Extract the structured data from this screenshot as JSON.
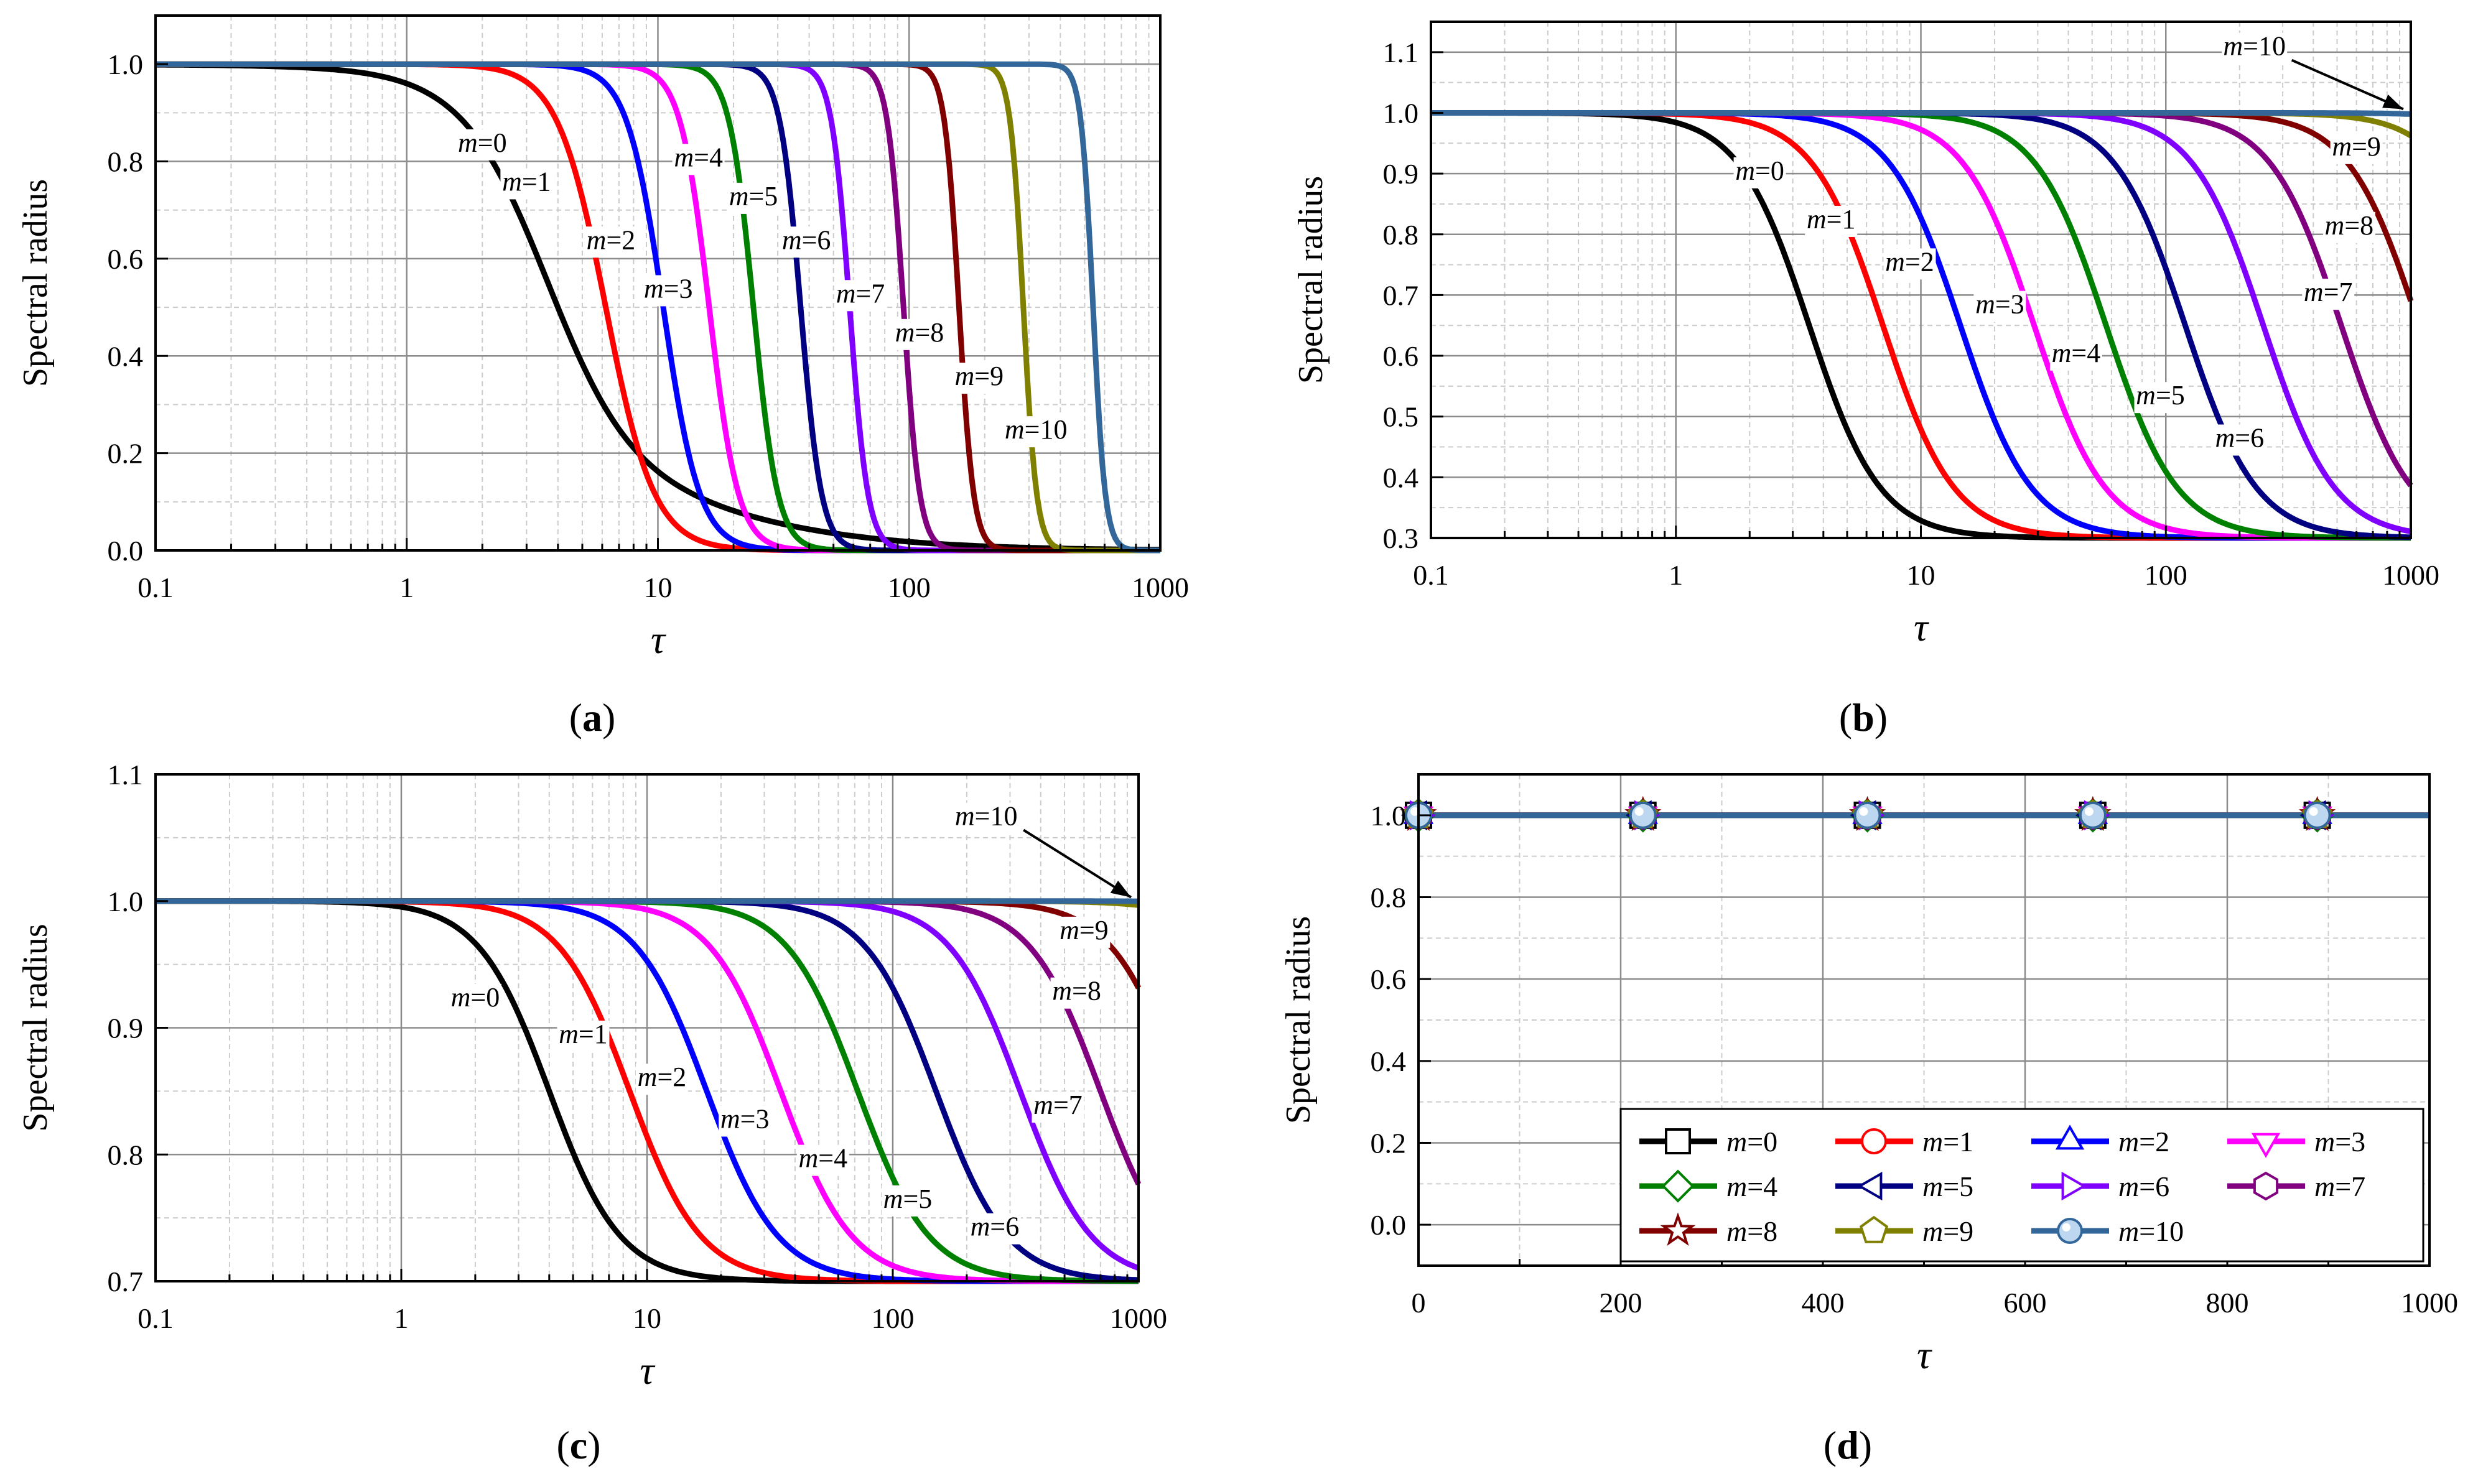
{
  "figure": {
    "panels": [
      "a",
      "b",
      "c",
      "d"
    ]
  },
  "colors": {
    "m0": "#000000",
    "m1": "#ff0000",
    "m2": "#0000ff",
    "m3": "#ff00ff",
    "m4": "#008000",
    "m5": "#000080",
    "m6": "#8000ff",
    "m7": "#800080",
    "m8": "#800000",
    "m9": "#808000",
    "m10": "#336699"
  },
  "legend": {
    "entries": [
      {
        "m": "m",
        "eq": "=0",
        "marker": "square"
      },
      {
        "m": "m",
        "eq": "=1",
        "marker": "circle"
      },
      {
        "m": "m",
        "eq": "=2",
        "marker": "triangle-up"
      },
      {
        "m": "m",
        "eq": "=3",
        "marker": "triangle-down"
      },
      {
        "m": "m",
        "eq": "=4",
        "marker": "diamond"
      },
      {
        "m": "m",
        "eq": "=5",
        "marker": "triangle-left"
      },
      {
        "m": "m",
        "eq": "=6",
        "marker": "triangle-right"
      },
      {
        "m": "m",
        "eq": "=7",
        "marker": "hexagon"
      },
      {
        "m": "m",
        "eq": "=8",
        "marker": "star"
      },
      {
        "m": "m",
        "eq": "=9",
        "marker": "pentagon"
      },
      {
        "m": "m",
        "eq": "=10",
        "marker": "sphere"
      }
    ]
  },
  "chart_data": [
    {
      "id": "a",
      "panel_letter": "a",
      "type": "line",
      "xscale": "log",
      "xlabel": "τ",
      "ylabel": "Spectral radius",
      "xlim": [
        0.1,
        1000
      ],
      "ylim": [
        0.0,
        1.1
      ],
      "xticks": [
        "0.1",
        "1",
        "10",
        "100",
        "1000"
      ],
      "yticks": [
        "0.0",
        "0.2",
        "0.4",
        "0.6",
        "0.8",
        "1.0"
      ],
      "floor": 0.0,
      "series": [
        {
          "name": "m=0",
          "tau_half": 3.6,
          "steep": 2.2,
          "tail": true
        },
        {
          "name": "m=1",
          "tau_half": 6.2,
          "steep": 4.5
        },
        {
          "name": "m=2",
          "tau_half": 10.5,
          "steep": 6.0
        },
        {
          "name": "m=3",
          "tau_half": 16.0,
          "steep": 7.5
        },
        {
          "name": "m=4",
          "tau_half": 24.0,
          "steep": 9.0
        },
        {
          "name": "m=5",
          "tau_half": 37.0,
          "steep": 10.5
        },
        {
          "name": "m=6",
          "tau_half": 58.0,
          "steep": 12.0
        },
        {
          "name": "m=7",
          "tau_half": 95.0,
          "steep": 13.5
        },
        {
          "name": "m=8",
          "tau_half": 158.0,
          "steep": 15.0
        },
        {
          "name": "m=9",
          "tau_half": 285.0,
          "steep": 16.5
        },
        {
          "name": "m=10",
          "tau_half": 540.0,
          "steep": 18.0
        }
      ],
      "labels": [
        {
          "m": "m",
          "eq": "=0",
          "tau": 2.0,
          "y": 0.82
        },
        {
          "m": "m",
          "eq": "=1",
          "tau": 3.0,
          "y": 0.74
        },
        {
          "m": "m",
          "eq": "=2",
          "tau": 6.5,
          "y": 0.62
        },
        {
          "m": "m",
          "eq": "=3",
          "tau": 11.0,
          "y": 0.52
        },
        {
          "m": "m",
          "eq": "=4",
          "tau": 14.5,
          "y": 0.79
        },
        {
          "m": "m",
          "eq": "=5",
          "tau": 24.0,
          "y": 0.71
        },
        {
          "m": "m",
          "eq": "=6",
          "tau": 39.0,
          "y": 0.62
        },
        {
          "m": "m",
          "eq": "=7",
          "tau": 64.0,
          "y": 0.51
        },
        {
          "m": "m",
          "eq": "=8",
          "tau": 110.0,
          "y": 0.43
        },
        {
          "m": "m",
          "eq": "=9",
          "tau": 190.0,
          "y": 0.34
        },
        {
          "m": "m",
          "eq": "=10",
          "tau": 320.0,
          "y": 0.23
        }
      ]
    },
    {
      "id": "b",
      "panel_letter": "b",
      "type": "line",
      "xscale": "log",
      "xlabel": "τ",
      "ylabel": "Spectral radius",
      "xlim": [
        0.1,
        1000
      ],
      "ylim": [
        0.3,
        1.15
      ],
      "xticks": [
        "0.1",
        "1",
        "10",
        "100",
        "1000"
      ],
      "yticks": [
        "0.3",
        "0.4",
        "0.5",
        "0.6",
        "0.7",
        "0.8",
        "0.9",
        "1.0",
        "1.1"
      ],
      "floor": 0.3,
      "series": [
        {
          "name": "m=0",
          "tau_half": 3.5,
          "steep": 3.0
        },
        {
          "name": "m=1",
          "tau_half": 7.0,
          "steep": 3.0
        },
        {
          "name": "m=2",
          "tau_half": 14.5,
          "steep": 3.0
        },
        {
          "name": "m=3",
          "tau_half": 29.0,
          "steep": 3.0
        },
        {
          "name": "m=4",
          "tau_half": 57.0,
          "steep": 3.0
        },
        {
          "name": "m=5",
          "tau_half": 120.0,
          "steep": 3.0
        },
        {
          "name": "m=6",
          "tau_half": 250.0,
          "steep": 3.0
        },
        {
          "name": "m=7",
          "tau_half": 520.0,
          "steep": 3.0
        },
        {
          "name": "m=8",
          "tau_half": 1080.0,
          "steep": 3.0
        },
        {
          "name": "m=9",
          "tau_half": 2600.0,
          "steep": 3.0
        },
        {
          "name": "m=10",
          "tau_half": 7000.0,
          "steep": 3.0
        }
      ],
      "labels": [
        {
          "m": "m",
          "eq": "=0",
          "tau": 2.2,
          "y": 0.89
        },
        {
          "m": "m",
          "eq": "=1",
          "tau": 4.3,
          "y": 0.81
        },
        {
          "m": "m",
          "eq": "=2",
          "tau": 9.0,
          "y": 0.74
        },
        {
          "m": "m",
          "eq": "=3",
          "tau": 21.0,
          "y": 0.67
        },
        {
          "m": "m",
          "eq": "=4",
          "tau": 43.0,
          "y": 0.59
        },
        {
          "m": "m",
          "eq": "=5",
          "tau": 95.0,
          "y": 0.52
        },
        {
          "m": "m",
          "eq": "=6",
          "tau": 200.0,
          "y": 0.45
        },
        {
          "m": "m",
          "eq": "=7",
          "tau": 460.0,
          "y": 0.69
        },
        {
          "m": "m",
          "eq": "=8",
          "tau": 560.0,
          "y": 0.8
        },
        {
          "m": "m",
          "eq": "=9",
          "tau": 600.0,
          "y": 0.93
        },
        {
          "m": "m",
          "eq": "=10",
          "tau": 230.0,
          "y": 1.095,
          "arrow": true
        }
      ]
    },
    {
      "id": "c",
      "panel_letter": "c",
      "type": "line",
      "xscale": "log",
      "xlabel": "τ",
      "ylabel": "Spectral radius",
      "xlim": [
        0.1,
        1000
      ],
      "ylim": [
        0.7,
        1.1
      ],
      "xticks": [
        "0.1",
        "1",
        "10",
        "100",
        "1000"
      ],
      "yticks": [
        "0.7",
        "0.8",
        "0.9",
        "1.0",
        "1.1"
      ],
      "floor": 0.7,
      "series": [
        {
          "name": "m=0",
          "tau_half": 4.0,
          "steep": 3.0
        },
        {
          "name": "m=1",
          "tau_half": 8.5,
          "steep": 3.0
        },
        {
          "name": "m=2",
          "tau_half": 17.5,
          "steep": 3.0
        },
        {
          "name": "m=3",
          "tau_half": 35.0,
          "steep": 3.0
        },
        {
          "name": "m=4",
          "tau_half": 72.0,
          "steep": 3.0
        },
        {
          "name": "m=5",
          "tau_half": 150.0,
          "steep": 3.0
        },
        {
          "name": "m=6",
          "tau_half": 330.0,
          "steep": 3.0
        },
        {
          "name": "m=7",
          "tau_half": 700.0,
          "steep": 3.0
        },
        {
          "name": "m=8",
          "tau_half": 1500.0,
          "steep": 3.0
        },
        {
          "name": "m=9",
          "tau_half": 4500.0,
          "steep": 3.0
        },
        {
          "name": "m=10",
          "tau_half": 12000.0,
          "steep": 3.0
        }
      ],
      "labels": [
        {
          "m": "m",
          "eq": "=0",
          "tau": 2.0,
          "y": 0.917
        },
        {
          "m": "m",
          "eq": "=1",
          "tau": 5.5,
          "y": 0.888
        },
        {
          "m": "m",
          "eq": "=2",
          "tau": 11.5,
          "y": 0.854
        },
        {
          "m": "m",
          "eq": "=3",
          "tau": 25.0,
          "y": 0.821
        },
        {
          "m": "m",
          "eq": "=4",
          "tau": 52.0,
          "y": 0.79
        },
        {
          "m": "m",
          "eq": "=5",
          "tau": 115.0,
          "y": 0.758
        },
        {
          "m": "m",
          "eq": "=6",
          "tau": 260.0,
          "y": 0.736
        },
        {
          "m": "m",
          "eq": "=7",
          "tau": 470.0,
          "y": 0.832
        },
        {
          "m": "m",
          "eq": "=8",
          "tau": 560.0,
          "y": 0.922
        },
        {
          "m": "m",
          "eq": "=9",
          "tau": 600.0,
          "y": 0.97
        },
        {
          "m": "m",
          "eq": "=10",
          "tau": 240.0,
          "y": 1.06,
          "arrow": true
        }
      ]
    },
    {
      "id": "d",
      "panel_letter": "d",
      "type": "line",
      "xscale": "linear",
      "xlabel": "τ",
      "ylabel": "Spectral radius",
      "xlim": [
        0,
        1000
      ],
      "ylim": [
        -0.1,
        1.1
      ],
      "xticks": [
        "0",
        "200",
        "400",
        "600",
        "800",
        "1000"
      ],
      "yticks": [
        "0.0",
        "0.2",
        "0.4",
        "0.6",
        "0.8",
        "1.0"
      ],
      "constant_value": 1.0,
      "marker_positions": [
        0,
        222,
        444,
        667,
        889
      ],
      "series_names": [
        "m=0",
        "m=1",
        "m=2",
        "m=3",
        "m=4",
        "m=5",
        "m=6",
        "m=7",
        "m=8",
        "m=9",
        "m=10"
      ]
    }
  ]
}
